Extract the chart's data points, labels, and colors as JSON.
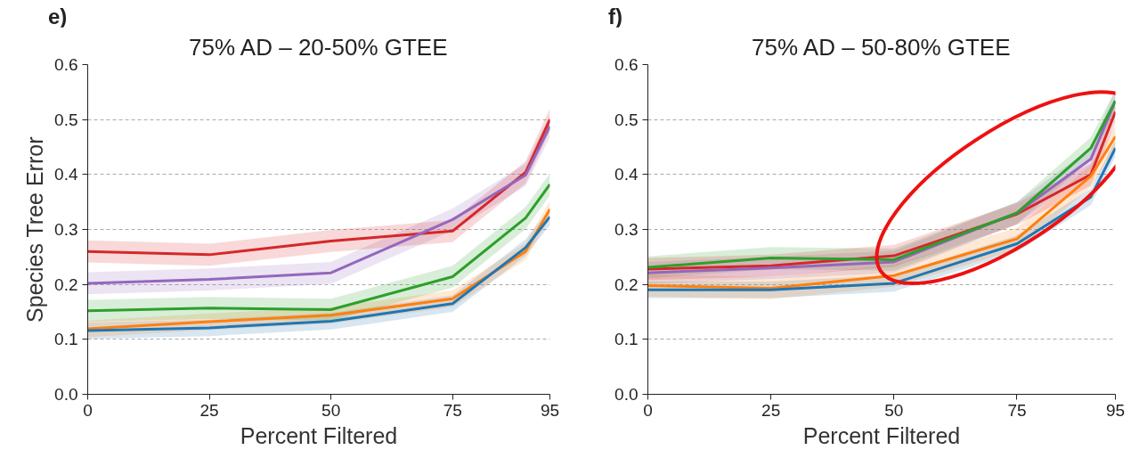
{
  "chart_data": [
    {
      "type": "line",
      "title": "75% AD – 20-50% GTEE",
      "xlabel": "Percent Filtered",
      "ylabel": "Species Tree Error",
      "annotations": [
        "e)"
      ],
      "x": [
        0,
        25,
        50,
        75,
        90,
        95
      ],
      "xlim": [
        0,
        95
      ],
      "xticks": [
        0,
        25,
        50,
        75,
        95
      ],
      "ylim": [
        0,
        0.6
      ],
      "yticks": [
        {
          "value": 0,
          "label": "0.0"
        },
        0.1,
        0.2,
        0.3,
        0.4,
        0.5,
        0.6
      ],
      "grid": "y",
      "line_style": "solid",
      "series": [
        {
          "color": "#1f77b4",
          "values": [
            0.116,
            0.121,
            0.133,
            0.165,
            0.267,
            0.323
          ],
          "lower": [
            0.101,
            0.106,
            0.118,
            0.15,
            0.252,
            0.308
          ],
          "upper": [
            0.131,
            0.136,
            0.148,
            0.18,
            0.282,
            0.338
          ]
        },
        {
          "color": "#ff7f0e",
          "values": [
            0.119,
            0.132,
            0.144,
            0.174,
            0.26,
            0.337
          ],
          "lower": [
            0.104,
            0.117,
            0.129,
            0.159,
            0.245,
            0.322
          ],
          "upper": [
            0.134,
            0.147,
            0.159,
            0.189,
            0.275,
            0.352
          ]
        },
        {
          "color": "#2ca02c",
          "values": [
            0.152,
            0.157,
            0.154,
            0.214,
            0.321,
            0.382
          ],
          "lower": [
            0.132,
            0.137,
            0.134,
            0.194,
            0.301,
            0.362
          ],
          "upper": [
            0.172,
            0.177,
            0.174,
            0.234,
            0.341,
            0.402
          ]
        },
        {
          "color": "#9467bd",
          "values": [
            0.202,
            0.209,
            0.221,
            0.318,
            0.399,
            0.488
          ],
          "lower": [
            0.182,
            0.189,
            0.201,
            0.298,
            0.379,
            0.468
          ],
          "upper": [
            0.222,
            0.229,
            0.241,
            0.338,
            0.419,
            0.508
          ]
        },
        {
          "color": "#d62728",
          "values": [
            0.26,
            0.254,
            0.279,
            0.297,
            0.404,
            0.5
          ],
          "lower": [
            0.24,
            0.234,
            0.259,
            0.277,
            0.384,
            0.48
          ],
          "upper": [
            0.28,
            0.274,
            0.299,
            0.317,
            0.424,
            0.52
          ]
        }
      ]
    },
    {
      "type": "line",
      "title": "75% AD – 50-80% GTEE",
      "xlabel": "Percent Filtered",
      "annotations": [
        "f)"
      ],
      "x": [
        0,
        25,
        50,
        75,
        90,
        95
      ],
      "xlim": [
        0,
        95
      ],
      "xticks": [
        0,
        25,
        50,
        75,
        95
      ],
      "ylim": [
        0,
        0.6
      ],
      "yticks": [
        {
          "value": 0,
          "label": "0.0"
        },
        0.1,
        0.2,
        0.3,
        0.4,
        0.5,
        0.6
      ],
      "grid": "y",
      "line_style": "solid",
      "series": [
        {
          "color": "#1f77b4",
          "values": [
            0.19,
            0.19,
            0.202,
            0.274,
            0.359,
            0.448
          ],
          "lower": [
            0.175,
            0.175,
            0.187,
            0.259,
            0.344,
            0.433
          ],
          "upper": [
            0.205,
            0.205,
            0.217,
            0.289,
            0.374,
            0.463
          ]
        },
        {
          "color": "#ff7f0e",
          "values": [
            0.198,
            0.193,
            0.216,
            0.283,
            0.397,
            0.469
          ],
          "lower": [
            0.178,
            0.173,
            0.196,
            0.263,
            0.377,
            0.449
          ],
          "upper": [
            0.218,
            0.213,
            0.236,
            0.303,
            0.417,
            0.489
          ]
        },
        {
          "color": "#2ca02c",
          "values": [
            0.231,
            0.248,
            0.245,
            0.33,
            0.448,
            0.534
          ],
          "lower": [
            0.211,
            0.228,
            0.225,
            0.31,
            0.428,
            0.514
          ],
          "upper": [
            0.251,
            0.268,
            0.265,
            0.35,
            0.468,
            0.554
          ]
        },
        {
          "color": "#9467bd",
          "values": [
            0.221,
            0.23,
            0.241,
            0.33,
            0.428,
            0.534
          ],
          "lower": [
            0.201,
            0.21,
            0.221,
            0.31,
            0.408,
            0.514
          ],
          "upper": [
            0.241,
            0.25,
            0.261,
            0.35,
            0.448,
            0.554
          ]
        },
        {
          "color": "#d62728",
          "values": [
            0.228,
            0.234,
            0.252,
            0.328,
            0.4,
            0.514
          ],
          "lower": [
            0.208,
            0.214,
            0.232,
            0.308,
            0.38,
            0.494
          ],
          "upper": [
            0.248,
            0.254,
            0.272,
            0.348,
            0.42,
            0.534
          ]
        }
      ]
    }
  ]
}
